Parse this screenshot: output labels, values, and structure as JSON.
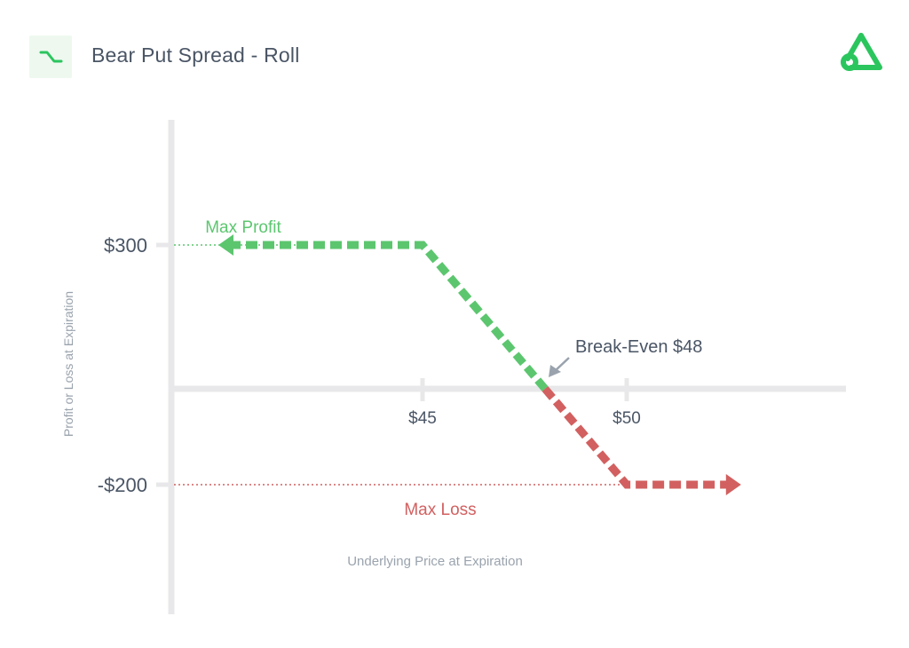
{
  "header": {
    "title": "Bear Put Spread - Roll",
    "icon": "bear-put-payoff-icon",
    "logo": "brand-logo-icon"
  },
  "colors": {
    "profit": "#5cc66f",
    "loss": "#d26060",
    "axis": "#e8e8ea",
    "text": "#4a5565",
    "muted": "#9aa3ad",
    "arrow": "#9aa3ad",
    "brand": "#2bc55e"
  },
  "chart_data": {
    "type": "line",
    "title": "Bear Put Spread - Roll",
    "xlabel": "Underlying Price at Expiration",
    "ylabel": "Profit or Loss at Expiration",
    "x_ticks": [
      {
        "value": 45,
        "label": "$45"
      },
      {
        "value": 50,
        "label": "$50"
      }
    ],
    "y_ticks": [
      {
        "value": 300,
        "label": "$300"
      },
      {
        "value": -200,
        "label": "-$200"
      }
    ],
    "series": [
      {
        "points": [
          [
            40,
            300
          ],
          [
            45,
            300
          ],
          [
            48,
            0
          ],
          [
            50,
            -200
          ],
          [
            52.8,
            -200
          ]
        ],
        "profit_segment": [
          [
            40,
            300
          ],
          [
            45,
            300
          ],
          [
            48,
            0
          ]
        ],
        "loss_segment": [
          [
            48,
            0
          ],
          [
            50,
            -200
          ],
          [
            52.8,
            -200
          ]
        ]
      }
    ],
    "annotations": {
      "max_profit": {
        "label": "Max Profit",
        "value": 300
      },
      "max_loss": {
        "label": "Max Loss",
        "value": -200
      },
      "break_even": {
        "label": "Break-Even $48",
        "x": 48,
        "y": 0
      }
    },
    "grid": false
  }
}
